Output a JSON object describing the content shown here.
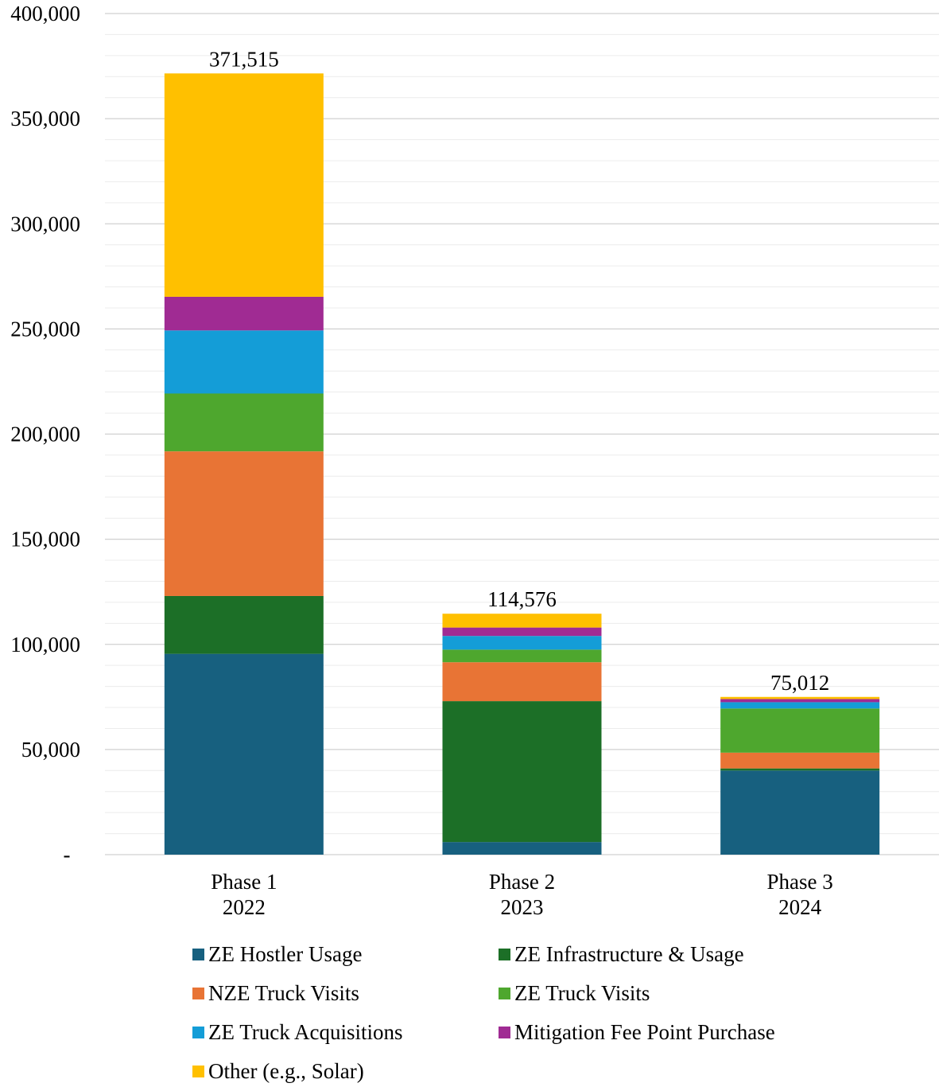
{
  "chart_data": {
    "type": "bar",
    "stacked": true,
    "categories": [
      [
        "Phase 1",
        "2022"
      ],
      [
        "Phase 2",
        "2023"
      ],
      [
        "Phase 3",
        "2024"
      ]
    ],
    "series": [
      {
        "name": "ZE Hostler Usage",
        "color": "#17607F",
        "values": [
          95500,
          6000,
          40000
        ]
      },
      {
        "name": "ZE Infrastructure & Usage",
        "color": "#1C6F27",
        "values": [
          27500,
          67000,
          1000
        ]
      },
      {
        "name": "NZE Truck Visits",
        "color": "#E87435",
        "values": [
          68800,
          18500,
          7500
        ]
      },
      {
        "name": "ZE Truck Visits",
        "color": "#4EA72E",
        "values": [
          27500,
          6000,
          21000
        ]
      },
      {
        "name": "ZE Truck Acquisitions",
        "color": "#149DD7",
        "values": [
          30000,
          6500,
          3000
        ]
      },
      {
        "name": "Mitigation Fee Point Purchase",
        "color": "#A02B93",
        "values": [
          16000,
          4000,
          1500
        ]
      },
      {
        "name": "Other (e.g., Solar)",
        "color": "#FFC000",
        "values": [
          106215,
          6576,
          1012
        ]
      }
    ],
    "totals": [
      371515,
      114576,
      75012
    ],
    "total_labels": [
      "371,515",
      "114,576",
      "75,012"
    ],
    "ylim": [
      0,
      400000
    ],
    "y_ticks": [
      0,
      50000,
      100000,
      150000,
      200000,
      250000,
      300000,
      350000,
      400000
    ],
    "y_tick_labels": [
      "-",
      "50,000",
      "100,000",
      "150,000",
      "200,000",
      "250,000",
      "300,000",
      "350,000",
      "400,000"
    ],
    "minor_gridlines": true,
    "legend_position": "bottom"
  }
}
